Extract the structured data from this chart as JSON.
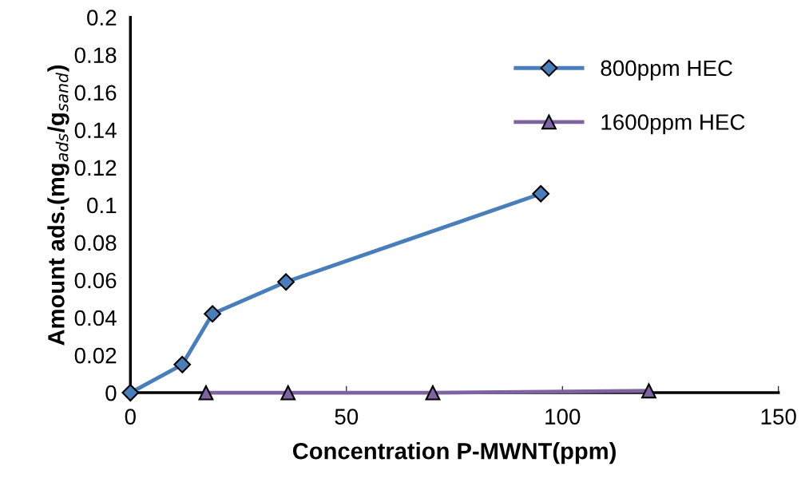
{
  "chart_data": {
    "type": "line",
    "xlabel": "Concentration P-MWNT(ppm)",
    "ylabel": "Amount ads.(mg$_{ads}$/g$_{sand}$)",
    "xlim": [
      0,
      150
    ],
    "xticks": [
      0,
      50,
      100,
      150
    ],
    "ylim": [
      0,
      0.2
    ],
    "yticks": [
      0,
      0.02,
      0.04,
      0.06,
      0.08,
      0.1,
      0.12,
      0.14,
      0.16,
      0.18,
      0.2
    ],
    "grid": false,
    "legend": "top right",
    "series": [
      {
        "name": "800ppm HEC",
        "color": "#4a7ebb",
        "marker": "diamond",
        "x": [
          0,
          12,
          19,
          36,
          95
        ],
        "values": [
          0,
          0.015,
          0.042,
          0.059,
          0.106
        ]
      },
      {
        "name": "1600ppm HEC",
        "color": "#7f63a1",
        "marker": "triangle",
        "x": [
          17.5,
          36.5,
          70,
          120
        ],
        "values": [
          0,
          0,
          0,
          0.001
        ]
      }
    ]
  }
}
